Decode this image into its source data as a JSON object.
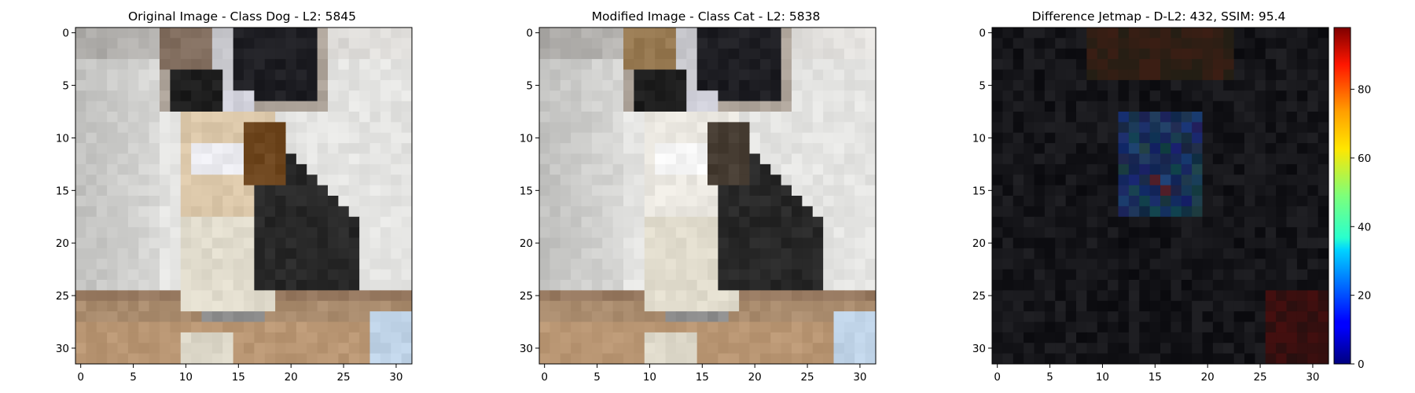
{
  "panels": [
    {
      "id": "original",
      "title": "Original Image - Class Dog - L2: 5845",
      "title_color": "#000000",
      "image": "original"
    },
    {
      "id": "modified",
      "title": "Modified Image - Class Cat - L2: 5838",
      "title_color": "#ff0000",
      "image": "modified"
    },
    {
      "id": "difference",
      "title": "Difference Jetmap - D-L2: 432, SSIM: 95.4",
      "title_color": "#000000",
      "image": "difference"
    }
  ],
  "axes": {
    "x_ticks": [
      "0",
      "5",
      "10",
      "15",
      "20",
      "25",
      "30"
    ],
    "y_ticks": [
      "0",
      "5",
      "10",
      "15",
      "20",
      "25",
      "30"
    ],
    "pixel_grid": 32
  },
  "colorbar": {
    "colormap": "jet",
    "ticks": [
      "0",
      "20",
      "40",
      "60",
      "80"
    ],
    "range": [
      0,
      98
    ]
  }
}
